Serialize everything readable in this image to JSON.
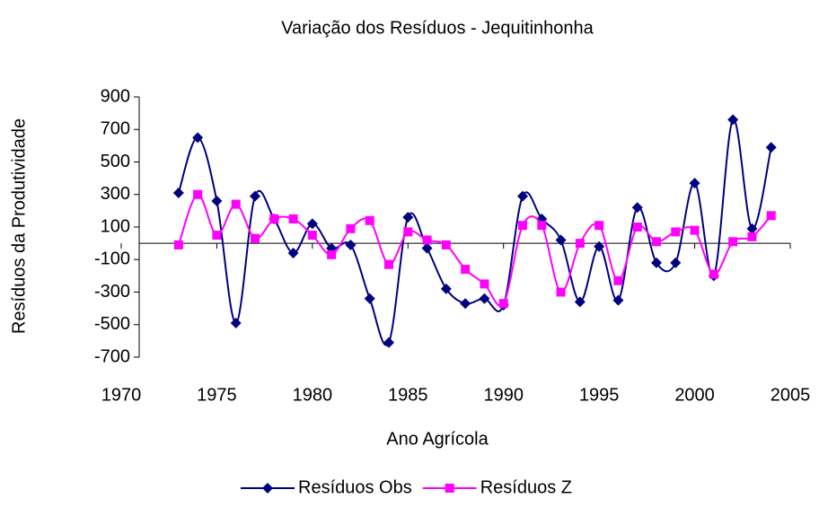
{
  "chart_data": {
    "type": "line",
    "title": "Variação dos Resíduos - Jequitinhonha",
    "xlabel": "Ano Agrícola",
    "ylabel": "Resíduos da Produtividade",
    "x": [
      1973,
      1974,
      1975,
      1976,
      1977,
      1978,
      1979,
      1980,
      1981,
      1982,
      1983,
      1984,
      1985,
      1986,
      1987,
      1988,
      1989,
      1990,
      1991,
      1992,
      1993,
      1994,
      1995,
      1996,
      1997,
      1998,
      1999,
      2000,
      2001,
      2002,
      2003,
      2004
    ],
    "series": [
      {
        "name": "Resíduos Obs",
        "color": "#000080",
        "marker": "diamond",
        "values": [
          310,
          650,
          260,
          -490,
          290,
          150,
          -60,
          120,
          -30,
          -10,
          -340,
          -610,
          160,
          -30,
          -280,
          -370,
          -340,
          -380,
          290,
          150,
          20,
          -360,
          -20,
          -350,
          220,
          -120,
          -120,
          370,
          -200,
          760,
          90,
          590
        ]
      },
      {
        "name": "Resíduos Z",
        "color": "#ff00ff",
        "marker": "square",
        "values": [
          -10,
          300,
          50,
          240,
          30,
          150,
          150,
          50,
          -70,
          90,
          140,
          -130,
          70,
          20,
          -10,
          -160,
          -250,
          -370,
          110,
          110,
          -300,
          0,
          110,
          -230,
          100,
          10,
          70,
          80,
          -190,
          10,
          40,
          170
        ]
      }
    ],
    "xlim": [
      1970,
      2005
    ],
    "xticks": [
      1970,
      1975,
      1980,
      1985,
      1990,
      1995,
      2000,
      2005
    ],
    "ylim": [
      -700,
      900
    ],
    "yticks": [
      900,
      700,
      500,
      300,
      100,
      -100,
      -300,
      -500,
      -700
    ],
    "smooth": true,
    "legend": "bottom"
  }
}
